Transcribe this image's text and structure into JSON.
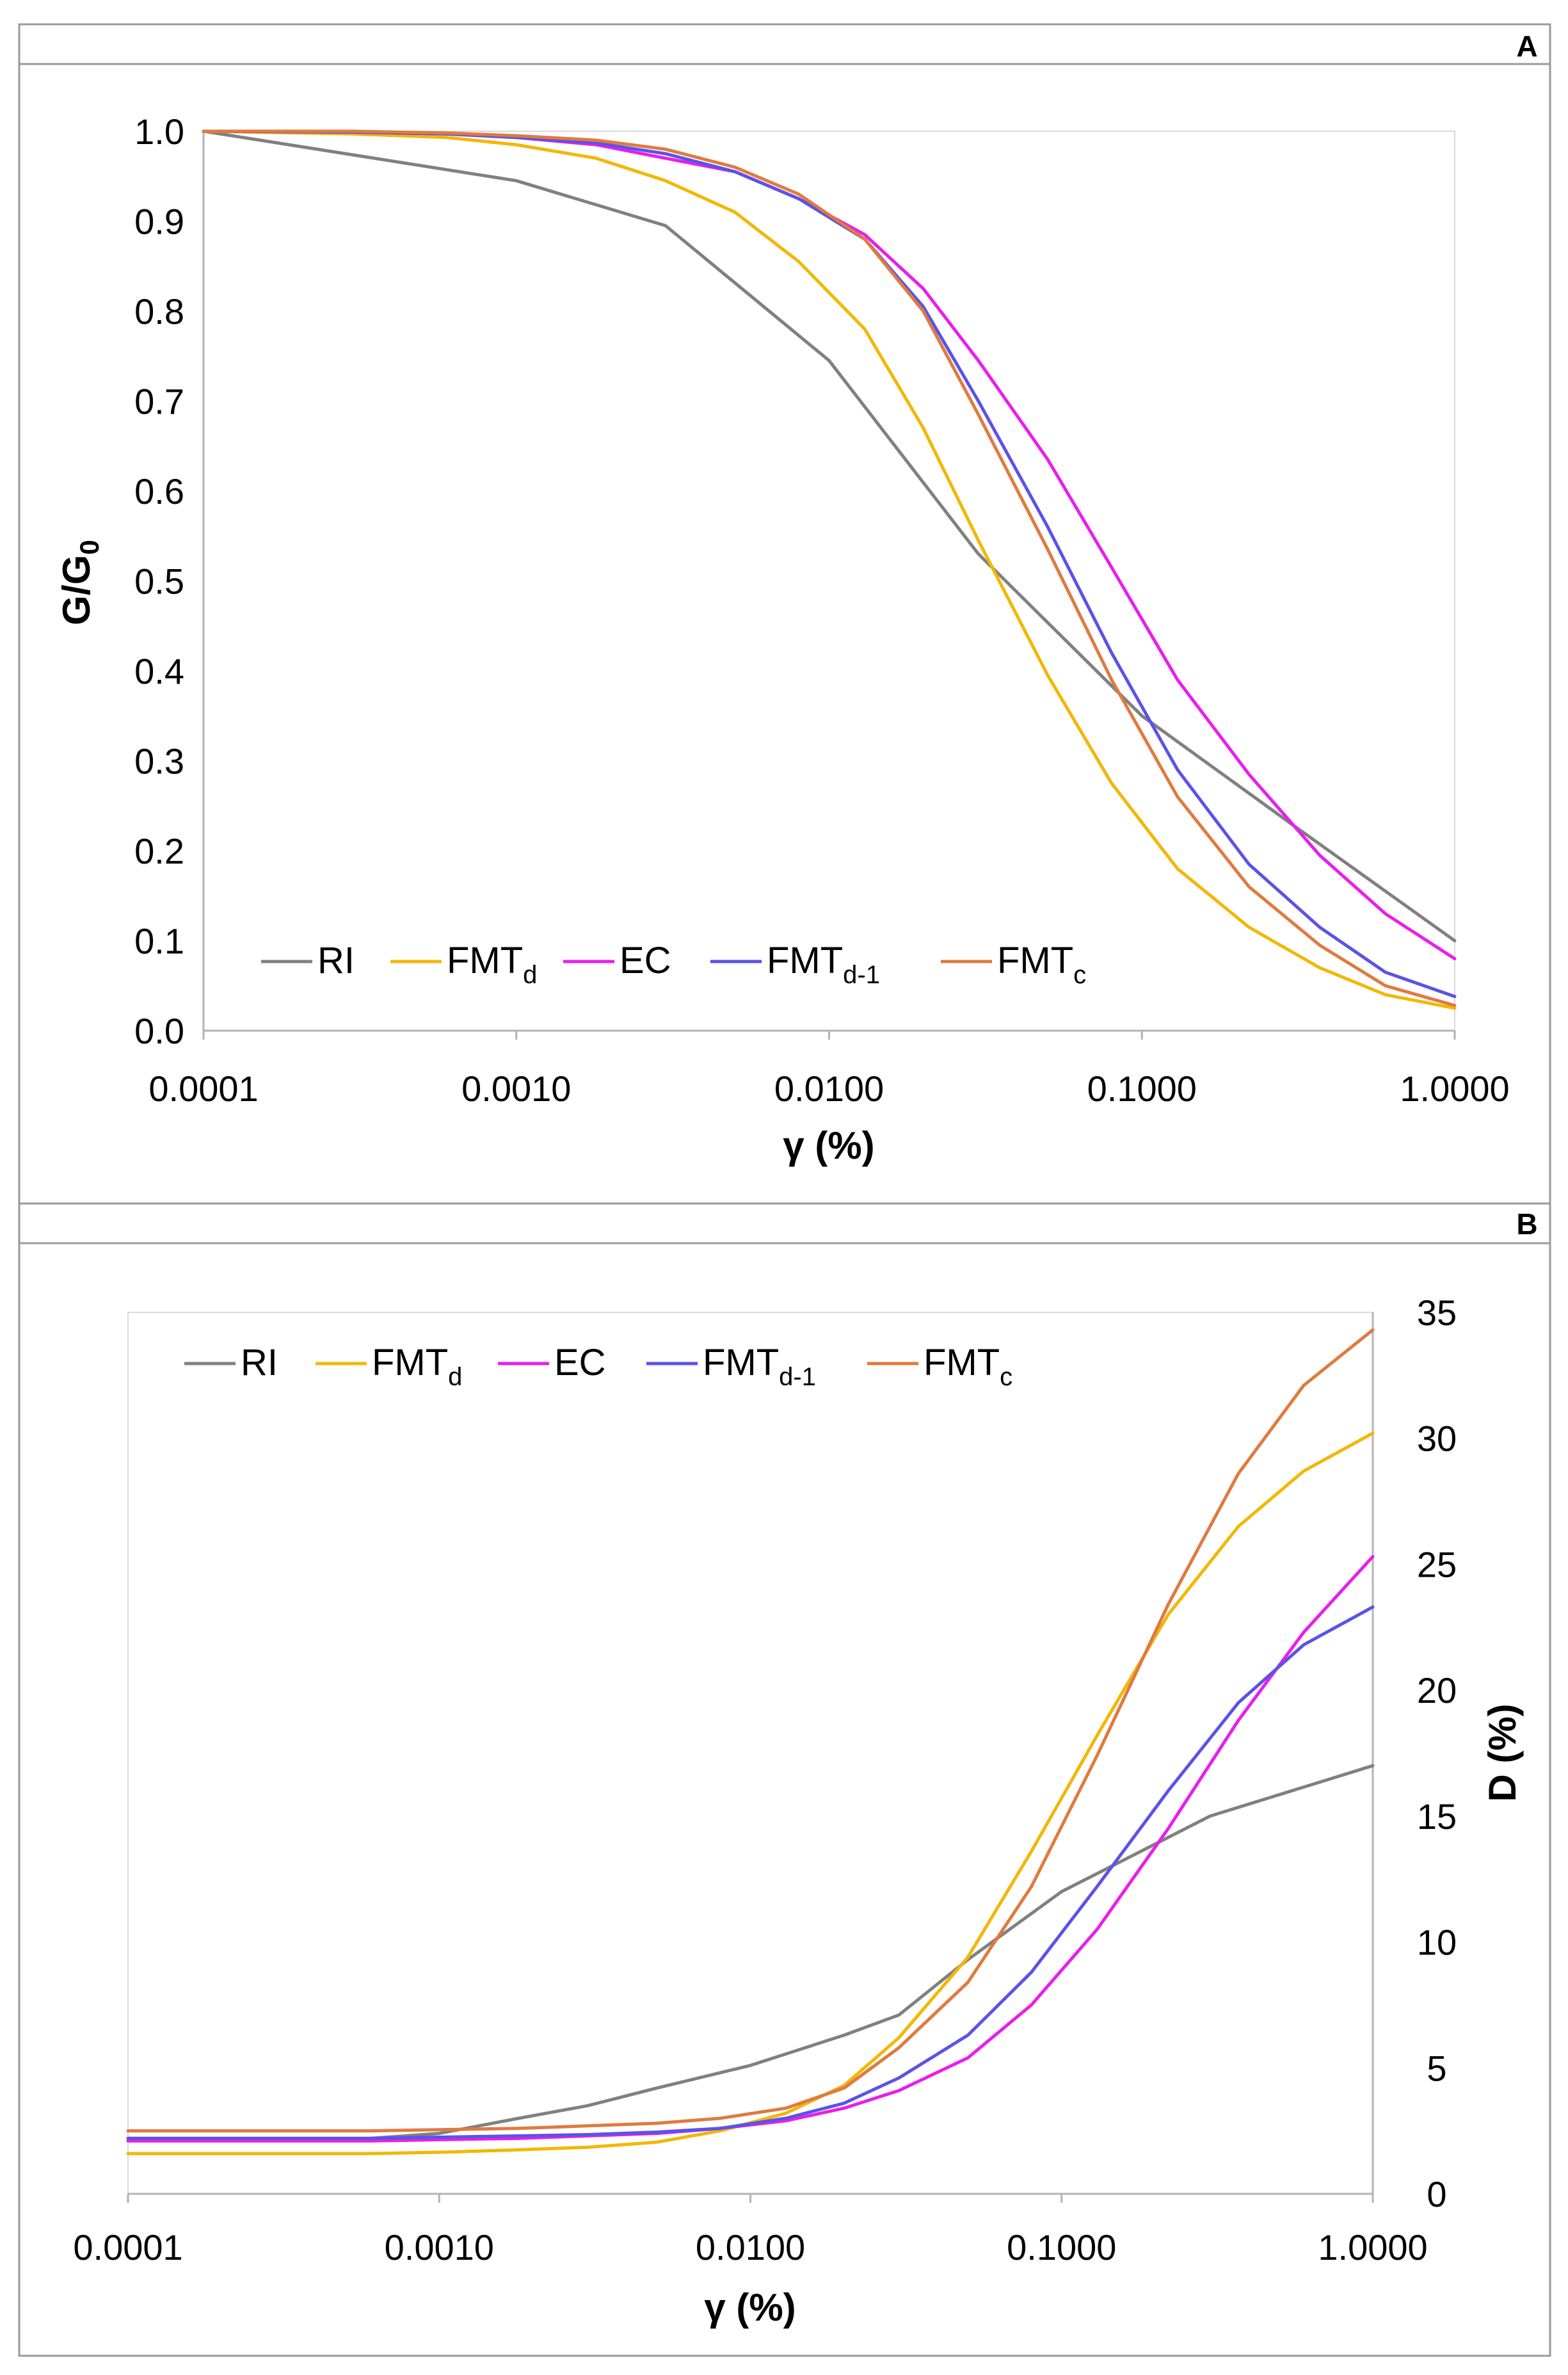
{
  "figure": {
    "panel_labels": [
      "A",
      "B"
    ]
  },
  "chart_data": [
    {
      "type": "line",
      "panel": "A",
      "xscale": "log",
      "xlabel": "γ (%)",
      "ylabel": {
        "base": "G/G",
        "sub": "0"
      },
      "xlim": [
        0.0001,
        1.0
      ],
      "ylim": [
        0.0,
        1.0
      ],
      "xticks": [
        {
          "value": 0.0001,
          "label": "0.0001"
        },
        {
          "value": 0.001,
          "label": "0.0010"
        },
        {
          "value": 0.01,
          "label": "0.0100"
        },
        {
          "value": 0.1,
          "label": "0.1000"
        },
        {
          "value": 1.0,
          "label": "1.0000"
        }
      ],
      "yticks": [
        {
          "value": 0.0,
          "label": "0.0"
        },
        {
          "value": 0.1,
          "label": "0.1"
        },
        {
          "value": 0.2,
          "label": "0.2"
        },
        {
          "value": 0.3,
          "label": "0.3"
        },
        {
          "value": 0.4,
          "label": "0.4"
        },
        {
          "value": 0.5,
          "label": "0.5"
        },
        {
          "value": 0.6,
          "label": "0.6"
        },
        {
          "value": 0.7,
          "label": "0.7"
        },
        {
          "value": 0.8,
          "label": "0.8"
        },
        {
          "value": 0.9,
          "label": "0.9"
        },
        {
          "value": 1.0,
          "label": "1.0"
        }
      ],
      "legend_position": "bottom-left",
      "series": [
        {
          "name": "RI",
          "label": "RI",
          "sub": "",
          "color": "#808080",
          "x": [
            0.0001,
            0.001,
            0.003,
            0.01,
            0.03,
            0.1,
            0.3,
            1.0
          ],
          "y": [
            1.0,
            0.945,
            0.895,
            0.745,
            0.53,
            0.35,
            0.23,
            0.1
          ]
        },
        {
          "name": "FMTd",
          "label": "FMT",
          "sub": "d",
          "color": "#F2B705",
          "x": [
            0.0001,
            0.0003,
            0.0006,
            0.001,
            0.0018,
            0.003,
            0.005,
            0.008,
            0.013,
            0.02,
            0.03,
            0.05,
            0.08,
            0.13,
            0.22,
            0.37,
            0.6,
            1.0
          ],
          "y": [
            1.0,
            0.997,
            0.993,
            0.985,
            0.97,
            0.945,
            0.91,
            0.855,
            0.78,
            0.67,
            0.545,
            0.395,
            0.275,
            0.18,
            0.115,
            0.07,
            0.04,
            0.025
          ]
        },
        {
          "name": "EC",
          "label": "EC",
          "sub": "",
          "color": "#E91EEB",
          "x": [
            0.0001,
            0.0003,
            0.0006,
            0.001,
            0.0018,
            0.003,
            0.005,
            0.008,
            0.013,
            0.02,
            0.03,
            0.05,
            0.08,
            0.13,
            0.22,
            0.37,
            0.6,
            1.0
          ],
          "y": [
            1.0,
            0.999,
            0.997,
            0.993,
            0.985,
            0.97,
            0.955,
            0.925,
            0.885,
            0.825,
            0.745,
            0.635,
            0.515,
            0.39,
            0.285,
            0.195,
            0.13,
            0.08
          ]
        },
        {
          "name": "FMTd-1",
          "label": "FMT",
          "sub": "d-1",
          "color": "#5B52E8",
          "x": [
            0.0001,
            0.0003,
            0.0006,
            0.001,
            0.0018,
            0.003,
            0.005,
            0.008,
            0.013,
            0.02,
            0.03,
            0.05,
            0.08,
            0.13,
            0.22,
            0.37,
            0.6,
            1.0
          ],
          "y": [
            1.0,
            0.999,
            0.997,
            0.993,
            0.987,
            0.975,
            0.955,
            0.925,
            0.88,
            0.805,
            0.7,
            0.56,
            0.42,
            0.29,
            0.185,
            0.115,
            0.065,
            0.038
          ]
        },
        {
          "name": "FMTc",
          "label": "FMT",
          "sub": "c",
          "color": "#E07A3F",
          "x": [
            0.0001,
            0.0003,
            0.0006,
            0.001,
            0.0018,
            0.003,
            0.005,
            0.008,
            0.013,
            0.02,
            0.03,
            0.05,
            0.08,
            0.13,
            0.22,
            0.37,
            0.6,
            1.0
          ],
          "y": [
            1.0,
            1.0,
            0.998,
            0.995,
            0.99,
            0.98,
            0.96,
            0.93,
            0.88,
            0.8,
            0.685,
            0.535,
            0.39,
            0.26,
            0.16,
            0.095,
            0.05,
            0.028
          ]
        }
      ]
    },
    {
      "type": "line",
      "panel": "B",
      "xscale": "log",
      "xlabel": "γ (%)",
      "ylabel": "D (%)",
      "yaxis_side": "right",
      "xlim": [
        0.0001,
        1.0
      ],
      "ylim": [
        0,
        35
      ],
      "xticks": [
        {
          "value": 0.0001,
          "label": "0.0001"
        },
        {
          "value": 0.001,
          "label": "0.0010"
        },
        {
          "value": 0.01,
          "label": "0.0100"
        },
        {
          "value": 0.1,
          "label": "0.1000"
        },
        {
          "value": 1.0,
          "label": "1.0000"
        }
      ],
      "yticks": [
        {
          "value": 0,
          "label": "0"
        },
        {
          "value": 5,
          "label": "5"
        },
        {
          "value": 10,
          "label": "10"
        },
        {
          "value": 15,
          "label": "15"
        },
        {
          "value": 20,
          "label": "20"
        },
        {
          "value": 25,
          "label": "25"
        },
        {
          "value": 30,
          "label": "30"
        },
        {
          "value": 35,
          "label": "35"
        }
      ],
      "legend_position": "top-left",
      "series": [
        {
          "name": "RI",
          "label": "RI",
          "sub": "",
          "color": "#808080",
          "x": [
            0.0001,
            0.0006,
            0.001,
            0.0018,
            0.003,
            0.005,
            0.01,
            0.02,
            0.03,
            0.05,
            0.1,
            0.3,
            1.0
          ],
          "y": [
            2.2,
            2.2,
            2.4,
            3.0,
            3.5,
            4.2,
            5.1,
            6.3,
            7.1,
            9.3,
            12.0,
            15.0,
            17.0
          ]
        },
        {
          "name": "FMTd",
          "label": "FMT",
          "sub": "d",
          "color": "#F2B705",
          "x": [
            0.0001,
            0.0006,
            0.001,
            0.0018,
            0.003,
            0.005,
            0.008,
            0.013,
            0.02,
            0.03,
            0.05,
            0.08,
            0.13,
            0.22,
            0.37,
            0.6,
            1.0
          ],
          "y": [
            1.6,
            1.6,
            1.65,
            1.75,
            1.85,
            2.05,
            2.5,
            3.2,
            4.3,
            6.2,
            9.4,
            13.6,
            18.2,
            23.0,
            26.5,
            28.7,
            30.2
          ]
        },
        {
          "name": "EC",
          "label": "EC",
          "sub": "",
          "color": "#E91EEB",
          "x": [
            0.0001,
            0.0006,
            0.001,
            0.0018,
            0.003,
            0.005,
            0.008,
            0.013,
            0.02,
            0.03,
            0.05,
            0.08,
            0.13,
            0.22,
            0.37,
            0.6,
            1.0
          ],
          "y": [
            2.1,
            2.1,
            2.15,
            2.2,
            2.3,
            2.4,
            2.6,
            2.9,
            3.4,
            4.1,
            5.4,
            7.5,
            10.5,
            14.5,
            18.8,
            22.3,
            25.3
          ]
        },
        {
          "name": "FMTd-1",
          "label": "FMT",
          "sub": "d-1",
          "color": "#5B52E8",
          "x": [
            0.0001,
            0.0006,
            0.001,
            0.0018,
            0.003,
            0.005,
            0.008,
            0.013,
            0.02,
            0.03,
            0.05,
            0.08,
            0.13,
            0.22,
            0.37,
            0.6,
            1.0
          ],
          "y": [
            2.2,
            2.2,
            2.25,
            2.3,
            2.35,
            2.45,
            2.6,
            3.0,
            3.6,
            4.6,
            6.3,
            8.8,
            12.2,
            16.0,
            19.5,
            21.8,
            23.3
          ]
        },
        {
          "name": "FMTc",
          "label": "FMT",
          "sub": "c",
          "color": "#E07A3F",
          "x": [
            0.0001,
            0.0006,
            0.001,
            0.0018,
            0.003,
            0.005,
            0.008,
            0.013,
            0.02,
            0.03,
            0.05,
            0.08,
            0.13,
            0.22,
            0.37,
            0.6,
            1.0
          ],
          "y": [
            2.5,
            2.5,
            2.55,
            2.6,
            2.7,
            2.8,
            3.0,
            3.4,
            4.2,
            5.8,
            8.4,
            12.2,
            17.4,
            23.4,
            28.6,
            32.1,
            34.3
          ]
        }
      ]
    }
  ]
}
